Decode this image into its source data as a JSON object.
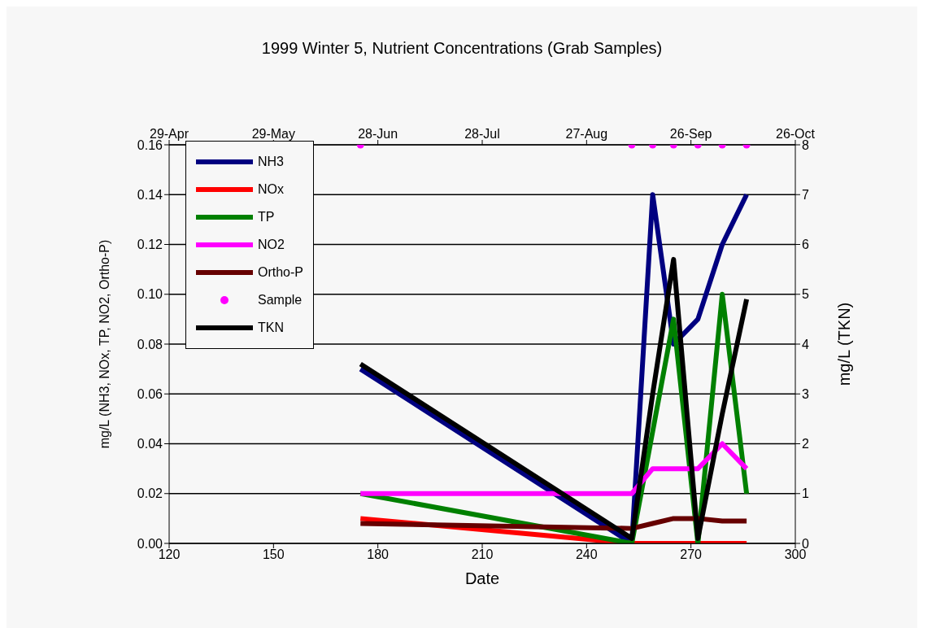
{
  "chart_data": {
    "type": "line",
    "title": "1999 Winter 5, Nutrient Concentrations (Grab Samples)",
    "xlabel": "Date",
    "ylabel": "mg/L (NH3, NOx, TP, NO2, Ortho-P)",
    "y2label": "mg/L (TKN)",
    "x": [
      175,
      253,
      259,
      265,
      272,
      279,
      286
    ],
    "series": [
      {
        "name": "NH3",
        "color": "#000080",
        "values": [
          0.07,
          0,
          0.14,
          0.08,
          0.09,
          0.12,
          0.14
        ]
      },
      {
        "name": "NOx",
        "color": "#ff0000",
        "values": [
          0.01,
          0,
          0,
          0,
          0,
          0,
          0
        ]
      },
      {
        "name": "TP",
        "color": "#008000",
        "values": [
          0.02,
          0,
          0.045,
          0.09,
          0,
          0.1,
          0.02
        ]
      },
      {
        "name": "NO2",
        "color": "#ff00ff",
        "values": [
          0.02,
          0.02,
          0.03,
          0.03,
          0.03,
          0.04,
          0.03
        ]
      },
      {
        "name": "Ortho-P",
        "color": "#660000",
        "values": [
          0.008,
          0.006,
          0.008,
          0.01,
          0.01,
          0.009,
          0.009
        ]
      },
      {
        "name": "Sample",
        "type": "scatter",
        "marker": "circle",
        "color": "#ff00ff",
        "values": [
          0.16,
          0.16,
          0.16,
          0.16,
          0.16,
          0.16,
          0.16
        ]
      },
      {
        "name": "TKN",
        "color": "#000000",
        "axis": "y2",
        "values": [
          3.6,
          0.1,
          3.0,
          5.7,
          0.1,
          2.6,
          4.9
        ]
      }
    ],
    "xlim": [
      120,
      300
    ],
    "xticks": [
      120,
      150,
      180,
      210,
      240,
      270,
      300
    ],
    "x2lim": [
      "--04-29",
      "--10-26"
    ],
    "x2ticks": [
      {
        "value": "--04-29",
        "label": "29-Apr"
      },
      {
        "value": "--05-29",
        "label": "29-May"
      },
      {
        "value": "--06-28",
        "label": "28-Jun"
      },
      {
        "value": "--07-28",
        "label": "28-Jul"
      },
      {
        "value": "--08-27",
        "label": "27-Aug"
      },
      {
        "value": "--09-26",
        "label": "26-Sep"
      },
      {
        "value": "--10-26",
        "label": "26-Oct"
      }
    ],
    "ylim": [
      0,
      0.16
    ],
    "yticks": [
      {
        "value": 0,
        "label": "0.00"
      },
      {
        "value": 0.02,
        "label": "0.02"
      },
      {
        "value": 0.04,
        "label": "0.04"
      },
      {
        "value": 0.06,
        "label": "0.06"
      },
      {
        "value": 0.08,
        "label": "0.08"
      },
      {
        "value": 0.1,
        "label": "0.10"
      },
      {
        "value": 0.12,
        "label": "0.12"
      },
      {
        "value": 0.14,
        "label": "0.14"
      },
      {
        "value": 0.16,
        "label": "0.16"
      }
    ],
    "y2lim": [
      0,
      8
    ],
    "y2ticks": [
      0,
      1,
      2,
      3,
      4,
      5,
      6,
      7,
      8
    ],
    "grid": "y",
    "legend": "top left",
    "marker": "none",
    "line_style": "solid"
  }
}
